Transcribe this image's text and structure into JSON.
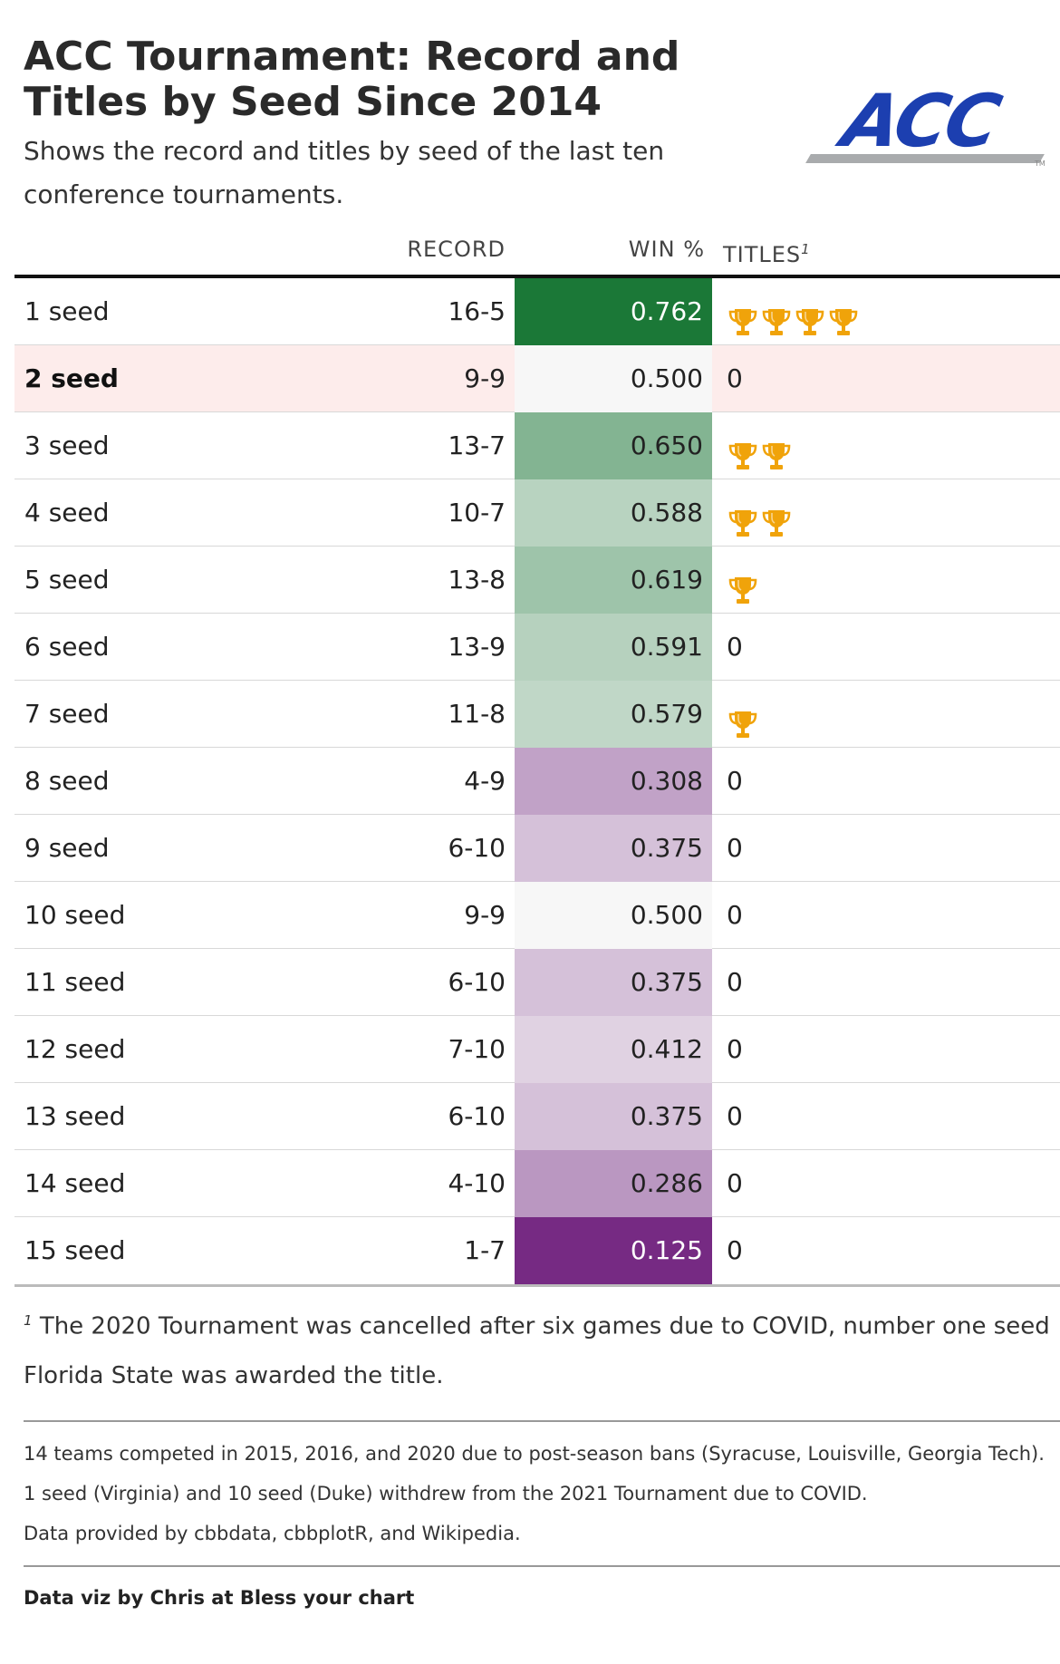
{
  "header": {
    "title": "ACC Tournament: Record and Titles by Seed Since 2014",
    "subtitle": "Shows the record and titles by seed of the last ten conference tournaments.",
    "logo_text": "ACC",
    "logo_tm": "TM"
  },
  "chart_data": {
    "type": "table",
    "columns": {
      "record": "RECORD",
      "win_pct": "WIN %",
      "titles": "TITLES",
      "titles_note_marker": "1"
    },
    "rows": [
      {
        "seed": "1 seed",
        "record": "16-5",
        "win_pct": "0.762",
        "win_value": 0.762,
        "titles": 4,
        "titles_text": "",
        "highlight": false
      },
      {
        "seed": "2 seed",
        "record": "9-9",
        "win_pct": "0.500",
        "win_value": 0.5,
        "titles": 0,
        "titles_text": "0",
        "highlight": true
      },
      {
        "seed": "3 seed",
        "record": "13-7",
        "win_pct": "0.650",
        "win_value": 0.65,
        "titles": 2,
        "titles_text": "",
        "highlight": false
      },
      {
        "seed": "4 seed",
        "record": "10-7",
        "win_pct": "0.588",
        "win_value": 0.588,
        "titles": 2,
        "titles_text": "",
        "highlight": false
      },
      {
        "seed": "5 seed",
        "record": "13-8",
        "win_pct": "0.619",
        "win_value": 0.619,
        "titles": 1,
        "titles_text": "",
        "highlight": false
      },
      {
        "seed": "6 seed",
        "record": "13-9",
        "win_pct": "0.591",
        "win_value": 0.591,
        "titles": 0,
        "titles_text": "0",
        "highlight": false
      },
      {
        "seed": "7 seed",
        "record": "11-8",
        "win_pct": "0.579",
        "win_value": 0.579,
        "titles": 1,
        "titles_text": "",
        "highlight": false
      },
      {
        "seed": "8 seed",
        "record": "4-9",
        "win_pct": "0.308",
        "win_value": 0.308,
        "titles": 0,
        "titles_text": "0",
        "highlight": false
      },
      {
        "seed": "9 seed",
        "record": "6-10",
        "win_pct": "0.375",
        "win_value": 0.375,
        "titles": 0,
        "titles_text": "0",
        "highlight": false
      },
      {
        "seed": "10 seed",
        "record": "9-9",
        "win_pct": "0.500",
        "win_value": 0.5,
        "titles": 0,
        "titles_text": "0",
        "highlight": false
      },
      {
        "seed": "11 seed",
        "record": "6-10",
        "win_pct": "0.375",
        "win_value": 0.375,
        "titles": 0,
        "titles_text": "0",
        "highlight": false
      },
      {
        "seed": "12 seed",
        "record": "7-10",
        "win_pct": "0.412",
        "win_value": 0.412,
        "titles": 0,
        "titles_text": "0",
        "highlight": false
      },
      {
        "seed": "13 seed",
        "record": "6-10",
        "win_pct": "0.375",
        "win_value": 0.375,
        "titles": 0,
        "titles_text": "0",
        "highlight": false
      },
      {
        "seed": "14 seed",
        "record": "4-10",
        "win_pct": "0.286",
        "win_value": 0.286,
        "titles": 0,
        "titles_text": "0",
        "highlight": false
      },
      {
        "seed": "15 seed",
        "record": "1-7",
        "win_pct": "0.125",
        "win_value": 0.125,
        "titles": 0,
        "titles_text": "0",
        "highlight": false
      }
    ],
    "color_scale": {
      "low": "#762a83",
      "mid": "#f7f7f7",
      "high": "#1b7837",
      "domain": [
        0.125,
        0.5,
        0.762
      ]
    },
    "trophy_icon": "trophy-icon",
    "trophy_color": "#f0a30a"
  },
  "footnote": {
    "marker": "1",
    "text": "The 2020 Tournament was cancelled after six games due to COVID, number one seed Florida State was awarded the title."
  },
  "notes": [
    "14 teams competed in 2015, 2016, and 2020 due to post-season bans (Syracuse, Louisville, Georgia Tech).",
    "1 seed (Virginia) and 10 seed (Duke) withdrew from the 2021 Tournament due to COVID.",
    "Data provided by cbbdata, cbbplotR, and Wikipedia."
  ],
  "credit": "Data viz by Chris at Bless your chart"
}
